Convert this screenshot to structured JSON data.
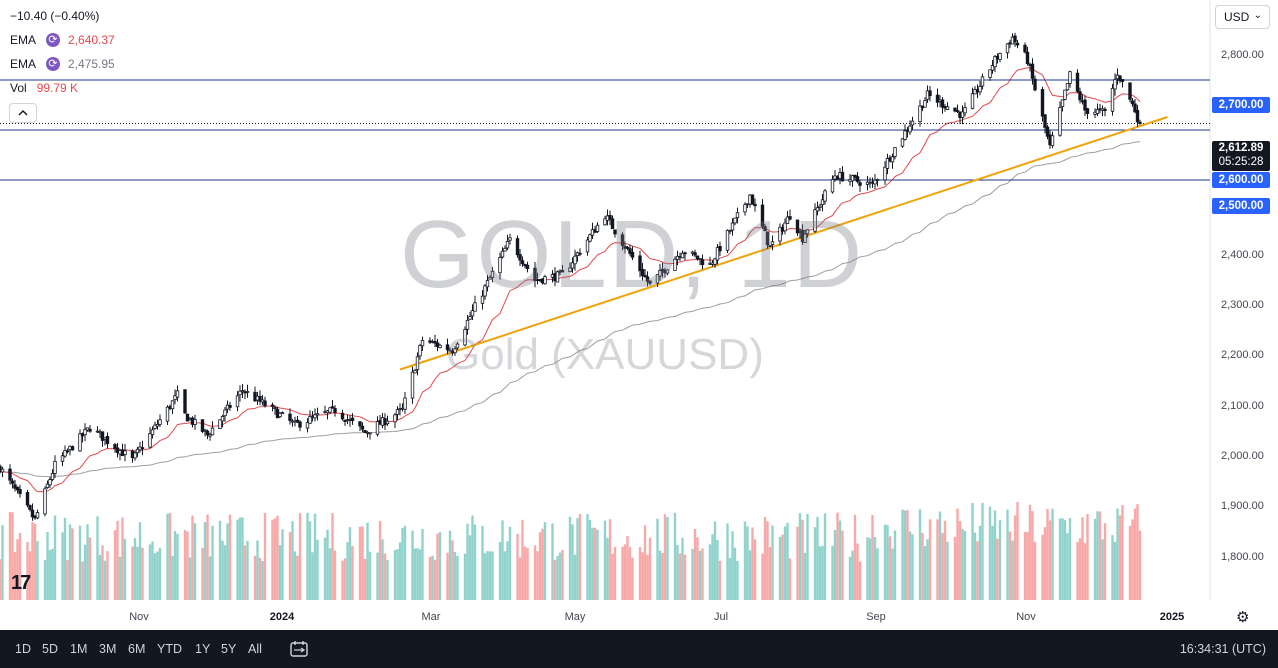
{
  "legend": {
    "change": "−10.40 (−0.40%)",
    "ema1": {
      "name": "EMA",
      "value": "2,640.37",
      "icon": "refresh-icon"
    },
    "ema2": {
      "name": "EMA",
      "value": "2,475.95",
      "icon": "refresh-icon"
    },
    "vol": {
      "name": "Vol",
      "value": "99.79 K"
    }
  },
  "currency": "USD",
  "watermark": {
    "symbol": "GOLD, 1D",
    "name": "Gold (XAUUSD)"
  },
  "price_tags": {
    "level_2700": "2,700.00",
    "last_price": "2,612.89",
    "countdown": "05:25:28",
    "level_2600": "2,600.00",
    "level_2500": "2,500.00"
  },
  "y_ticks": [
    "2,800.00",
    "2,400.00",
    "2,300.00",
    "2,200.00",
    "2,100.00",
    "2,000.00",
    "1,900.00",
    "1,800.00"
  ],
  "x_ticks": [
    {
      "label": "Nov",
      "bold": false
    },
    {
      "label": "2024",
      "bold": true
    },
    {
      "label": "Mar",
      "bold": false
    },
    {
      "label": "May",
      "bold": false
    },
    {
      "label": "Jul",
      "bold": false
    },
    {
      "label": "Sep",
      "bold": false
    },
    {
      "label": "Nov",
      "bold": false
    },
    {
      "label": "2025",
      "bold": true
    }
  ],
  "ranges": [
    "1D",
    "5D",
    "1M",
    "3M",
    "6M",
    "YTD",
    "1Y",
    "5Y",
    "All"
  ],
  "clock": "16:34:31 (UTC)",
  "colors": {
    "up": "#26a69a",
    "down": "#ef5350",
    "ema_fast": "#e5484d",
    "ema_slow": "#9e9e9e",
    "trendline": "#f0a30a",
    "level": "#2962ff"
  },
  "chart_data": {
    "type": "candlestick",
    "title": "Gold (XAUUSD)",
    "timeframe": "1D",
    "ylim": [
      1740,
      2860
    ],
    "x_range": [
      "2023-09-21",
      "2025-01-07"
    ],
    "horizontal_levels": [
      2700,
      2600,
      2500
    ],
    "last_price": 2612.89,
    "trendline": {
      "from": {
        "date": "2024-02-28",
        "price": 2121
      },
      "to": {
        "date": "2024-12-31",
        "price": 2626
      }
    },
    "ema_fast_last": 2640.37,
    "ema_slow_last": 2475.95,
    "volume_last": "99.79K",
    "anchors": [
      [
        "2023-09-21",
        1925
      ],
      [
        "2023-10-05",
        1820
      ],
      [
        "2023-10-13",
        1930
      ],
      [
        "2023-10-27",
        2005
      ],
      [
        "2023-11-13",
        1940
      ],
      [
        "2023-12-01",
        2070
      ],
      [
        "2023-12-04",
        2030
      ],
      [
        "2023-12-13",
        1990
      ],
      [
        "2023-12-27",
        2080
      ],
      [
        "2024-01-17",
        2010
      ],
      [
        "2024-02-02",
        2040
      ],
      [
        "2024-02-14",
        1995
      ],
      [
        "2024-02-29",
        2040
      ],
      [
        "2024-03-08",
        2180
      ],
      [
        "2024-03-20",
        2160
      ],
      [
        "2024-04-12",
        2380
      ],
      [
        "2024-04-22",
        2300
      ],
      [
        "2024-05-03",
        2310
      ],
      [
        "2024-05-20",
        2430
      ],
      [
        "2024-06-07",
        2290
      ],
      [
        "2024-06-20",
        2360
      ],
      [
        "2024-07-01",
        2330
      ],
      [
        "2024-07-17",
        2470
      ],
      [
        "2024-07-25",
        2365
      ],
      [
        "2024-08-02",
        2430
      ],
      [
        "2024-08-07",
        2385
      ],
      [
        "2024-08-20",
        2510
      ],
      [
        "2024-09-04",
        2490
      ],
      [
        "2024-09-20",
        2620
      ],
      [
        "2024-09-26",
        2670
      ],
      [
        "2024-10-10",
        2630
      ],
      [
        "2024-10-23",
        2740
      ],
      [
        "2024-10-30",
        2785
      ],
      [
        "2024-11-05",
        2740
      ],
      [
        "2024-11-14",
        2565
      ],
      [
        "2024-11-22",
        2710
      ],
      [
        "2024-11-28",
        2640
      ],
      [
        "2024-12-06",
        2635
      ],
      [
        "2024-12-11",
        2715
      ],
      [
        "2024-12-18",
        2640
      ],
      [
        "2024-12-20",
        2610
      ]
    ]
  }
}
